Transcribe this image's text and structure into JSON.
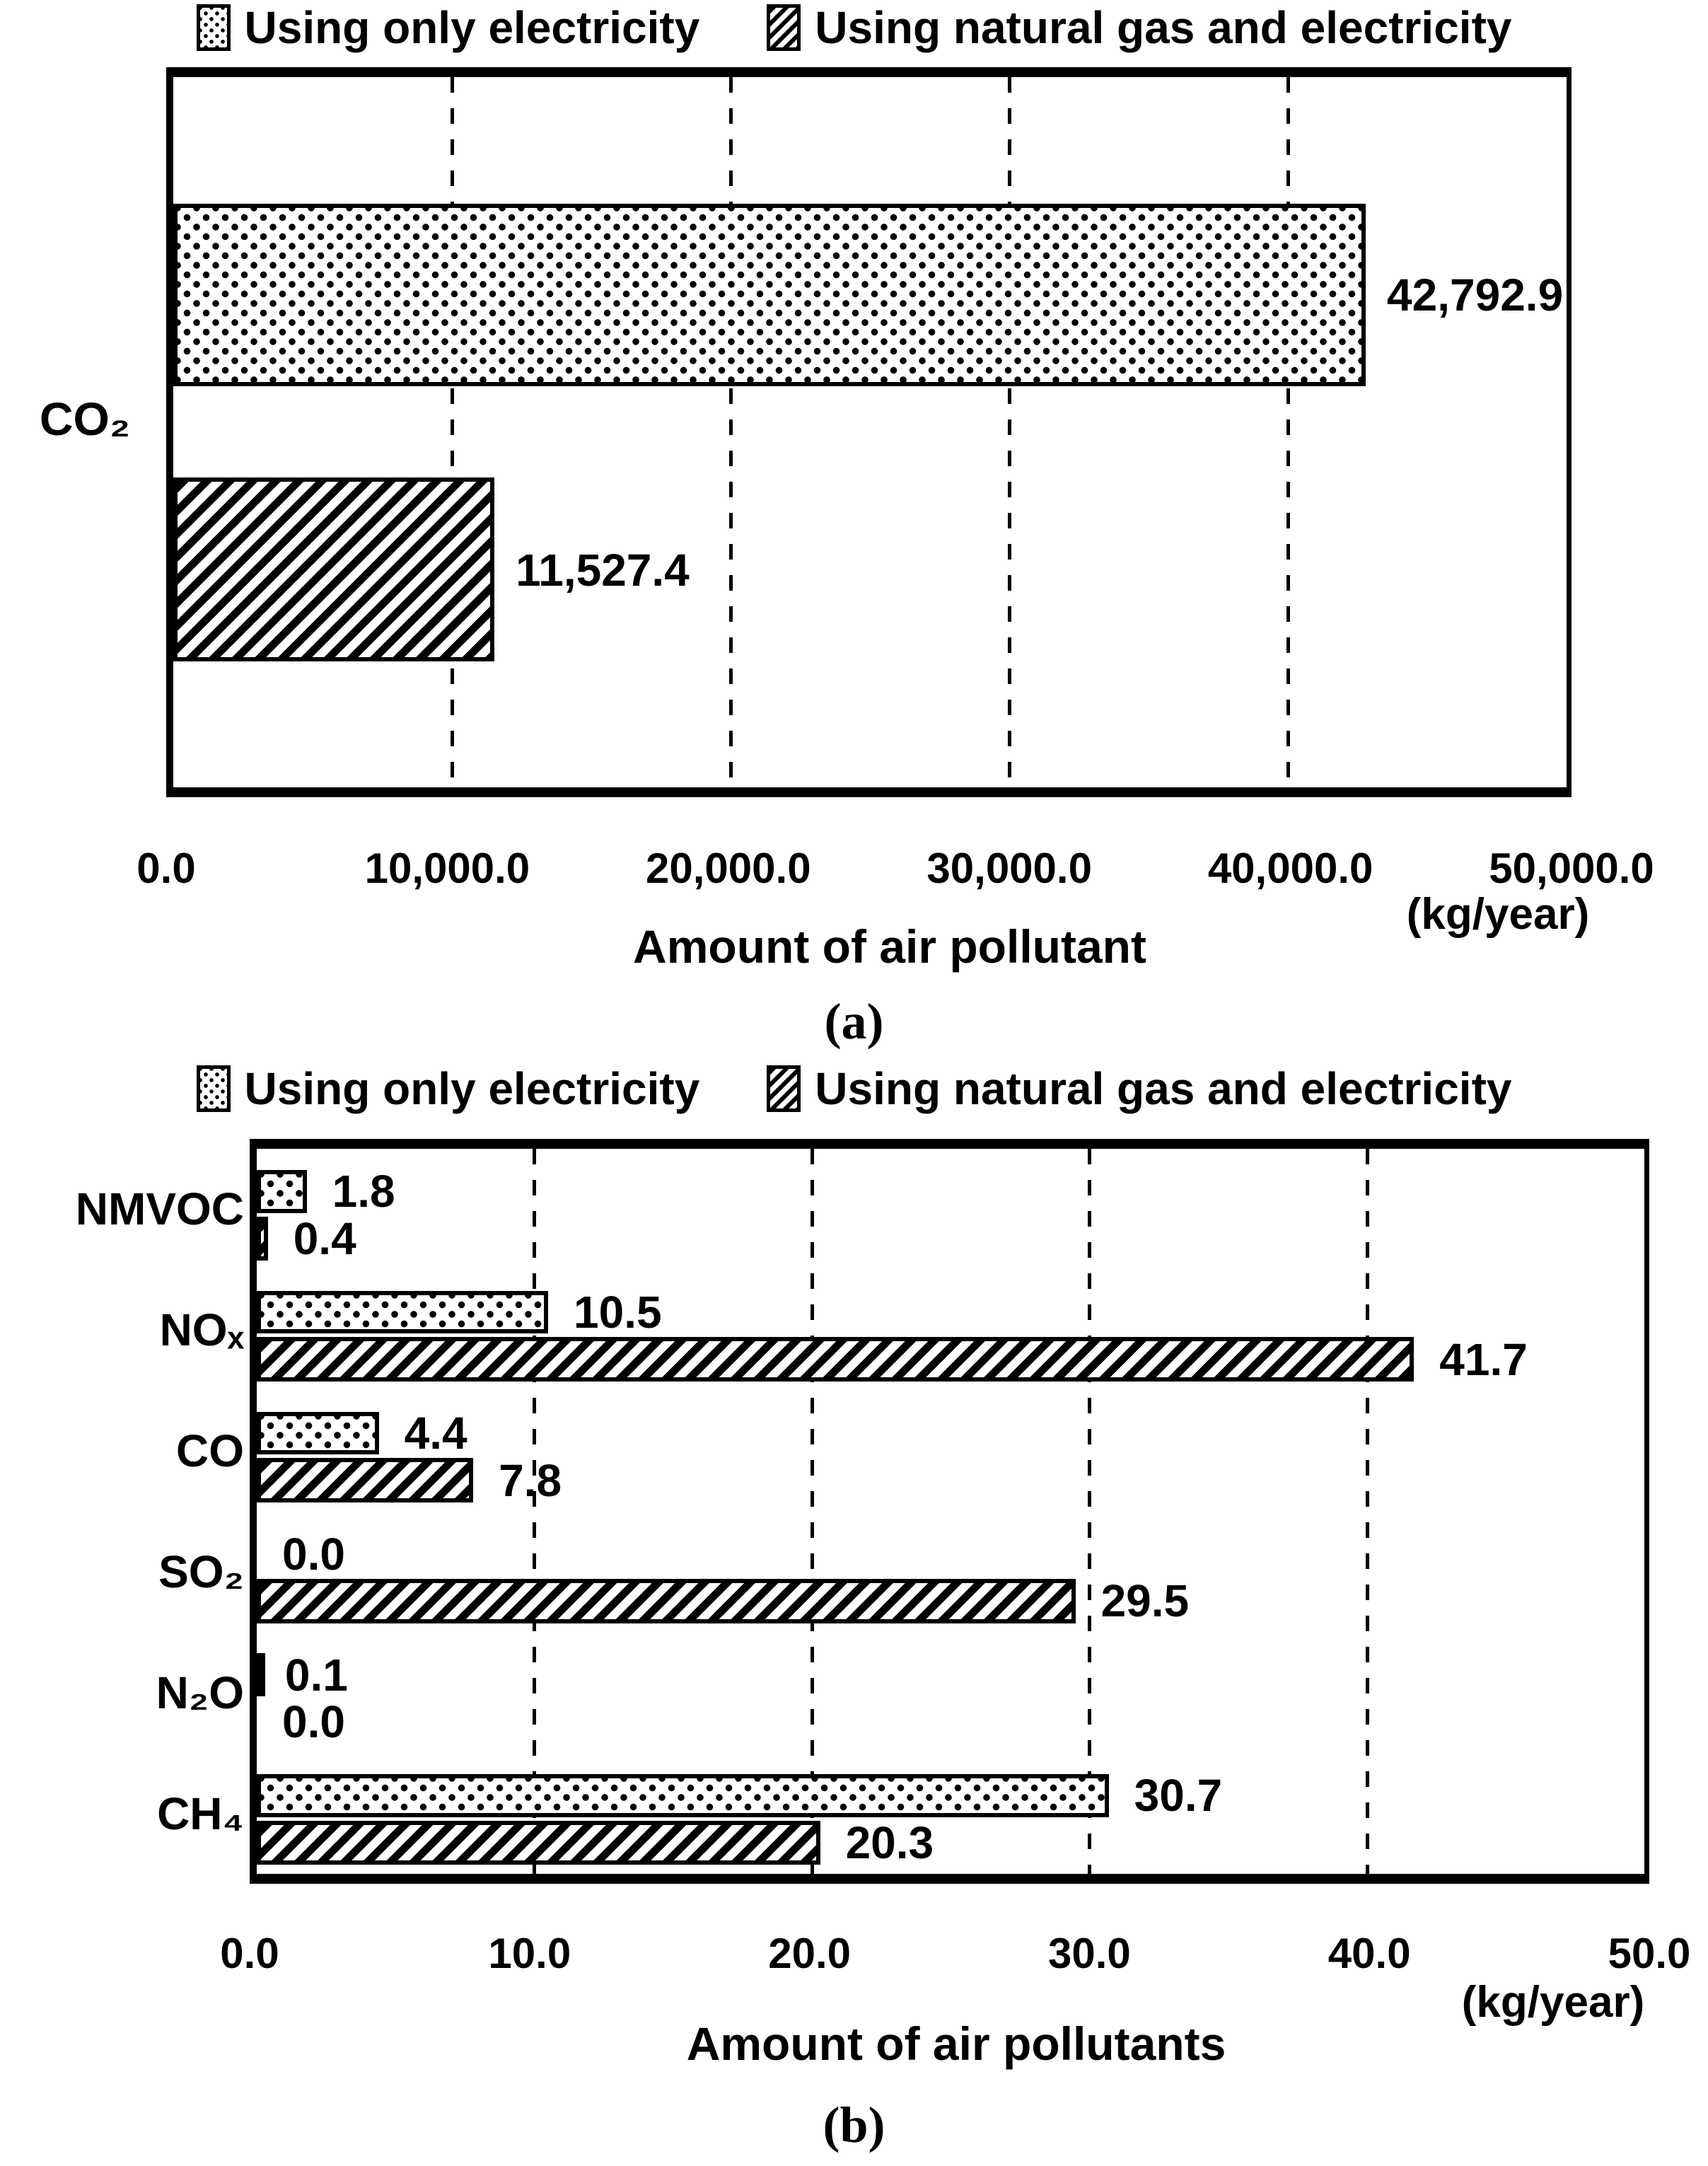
{
  "figure": {
    "background_color": "#ffffff",
    "ink_color": "#000000"
  },
  "chart_data": [
    {
      "type": "bar",
      "orientation": "horizontal",
      "caption": "(a)",
      "categories": [
        "CO₂"
      ],
      "series": [
        {
          "name": "Using only electricity",
          "pattern": "dotted",
          "values": [
            42792.9
          ],
          "labels": [
            "42,792.9"
          ]
        },
        {
          "name": "Using natural gas and electricity",
          "pattern": "diagonal-hatch",
          "values": [
            11527.4
          ],
          "labels": [
            "11,527.4"
          ]
        }
      ],
      "xlabel": "Amount of air pollutant",
      "x_unit": "(kg/year)",
      "xlim": [
        0,
        50000
      ],
      "x_ticks": [
        "0.0",
        "10,000.0",
        "20,000.0",
        "30,000.0",
        "40,000.0",
        "50,000.0"
      ],
      "gridlines": "vertical-dashed",
      "legend_position": "top"
    },
    {
      "type": "bar",
      "orientation": "horizontal",
      "caption": "(b)",
      "categories": [
        "NMVOC",
        "NOₓ",
        "CO",
        "SO₂",
        "N₂O",
        "CH₄"
      ],
      "series": [
        {
          "name": "Using only electricity",
          "pattern": "dotted",
          "values": [
            1.8,
            10.5,
            4.4,
            0.0,
            0.1,
            30.7
          ],
          "labels": [
            "1.8",
            "10.5",
            "4.4",
            "0.0",
            "0.1",
            "30.7"
          ]
        },
        {
          "name": "Using natural gas and electricity",
          "pattern": "diagonal-hatch",
          "values": [
            0.4,
            41.7,
            7.8,
            29.5,
            0.0,
            20.3
          ],
          "labels": [
            "0.4",
            "41.7",
            "7.8",
            "29.5",
            "0.0",
            "20.3"
          ]
        }
      ],
      "xlabel": "Amount of air pollutants",
      "x_unit": "(kg/year)",
      "xlim": [
        0,
        50
      ],
      "x_ticks": [
        "0.0",
        "10.0",
        "20.0",
        "30.0",
        "40.0",
        "50.0"
      ],
      "gridlines": "vertical-dashed",
      "legend_position": "top"
    }
  ]
}
